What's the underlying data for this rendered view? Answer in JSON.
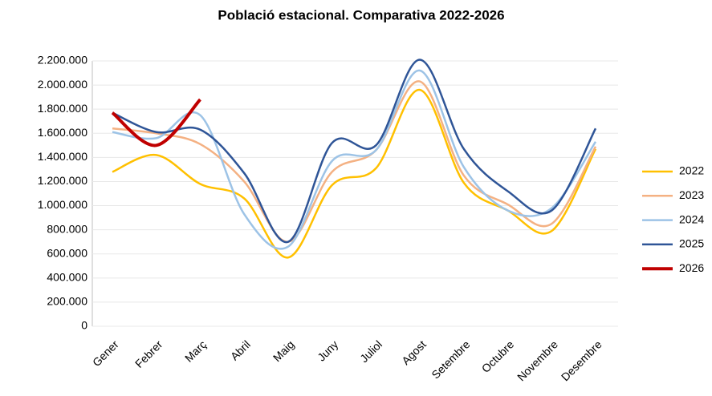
{
  "chart_data": {
    "type": "line",
    "title": "Població estacional. Comparativa 2022-2026",
    "categories": [
      "Gener",
      "Febrer",
      "Març",
      "Abril",
      "Maig",
      "Juny",
      "Juliol",
      "Agost",
      "Setembre",
      "Octubre",
      "Novembre",
      "Desembre"
    ],
    "series": [
      {
        "name": "2022",
        "color": "#ffc000",
        "values": [
          1280000,
          1420000,
          1180000,
          1060000,
          570000,
          1170000,
          1310000,
          1960000,
          1190000,
          960000,
          790000,
          1470000
        ]
      },
      {
        "name": "2023",
        "color": "#f4b183",
        "values": [
          1640000,
          1600000,
          1510000,
          1200000,
          700000,
          1280000,
          1460000,
          2030000,
          1250000,
          1010000,
          850000,
          1490000
        ]
      },
      {
        "name": "2024",
        "color": "#9dc3e6",
        "values": [
          1610000,
          1560000,
          1750000,
          930000,
          660000,
          1370000,
          1460000,
          2120000,
          1320000,
          960000,
          980000,
          1530000
        ]
      },
      {
        "name": "2025",
        "color": "#2f5597",
        "values": [
          1770000,
          1610000,
          1630000,
          1270000,
          700000,
          1520000,
          1500000,
          2210000,
          1470000,
          1120000,
          960000,
          1640000
        ]
      },
      {
        "name": "2026",
        "color": "#c00000",
        "values": [
          1770000,
          1500000,
          1880000,
          null,
          null,
          null,
          null,
          null,
          null,
          null,
          null,
          null
        ]
      }
    ],
    "ylim": [
      0,
      2200000
    ],
    "yticks": [
      0,
      {
        "value": 200000,
        "label": "200.000"
      },
      {
        "value": 400000,
        "label": "400.000"
      },
      {
        "value": 600000,
        "label": "600.000"
      },
      {
        "value": 800000,
        "label": "800.000"
      },
      {
        "value": 1000000,
        "label": "1.000.000"
      },
      {
        "value": 1200000,
        "label": "1.200.000"
      },
      {
        "value": 1400000,
        "label": "1.400.000"
      },
      {
        "value": 1600000,
        "label": "1.600.000"
      },
      {
        "value": 1800000,
        "label": "1.800.000"
      },
      {
        "value": 2000000,
        "label": "2.000.000"
      },
      {
        "value": 2200000,
        "label": "2.200.000"
      }
    ],
    "grid": true,
    "legend": "right"
  }
}
